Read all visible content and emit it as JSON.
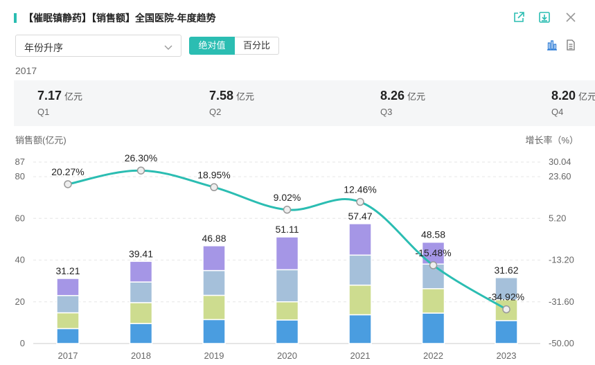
{
  "header": {
    "title": "【催眠镇静药】【销售额】全国医院-年度趋势",
    "icons": [
      "export-icon",
      "download-icon",
      "close-icon"
    ]
  },
  "toolbar": {
    "sort_value": "年份升序",
    "abs_label": "绝对值",
    "pct_label": "百分比",
    "view_icons": [
      "bar-chart-icon",
      "table-icon"
    ]
  },
  "summary": {
    "year": "2017",
    "unit": "亿元",
    "quarters": [
      {
        "name": "Q1",
        "value": "7.17"
      },
      {
        "name": "Q2",
        "value": "7.58"
      },
      {
        "name": "Q3",
        "value": "8.26"
      },
      {
        "name": "Q4",
        "value": "8.20"
      }
    ]
  },
  "colors": {
    "accent": "#2bbdb2",
    "q1": "#4a9de0",
    "q2": "#cddc8f",
    "q3": "#a5c0da",
    "q4": "#a596e6",
    "line": "#2bbdb2"
  },
  "chart_data": {
    "type": "bar",
    "stacked": true,
    "categories": [
      "2017",
      "2018",
      "2019",
      "2020",
      "2021",
      "2022",
      "2023"
    ],
    "totals": [
      31.21,
      39.41,
      46.88,
      51.11,
      57.47,
      48.58,
      31.62
    ],
    "series": [
      {
        "values": [
          7.17,
          9.6,
          11.5,
          11.3,
          13.8,
          14.6,
          11.0
        ]
      },
      {
        "values": [
          7.58,
          10.0,
          11.6,
          8.7,
          14.2,
          11.7,
          10.0
        ]
      },
      {
        "values": [
          8.26,
          9.9,
          11.9,
          15.4,
          14.4,
          11.8,
          10.62
        ]
      },
      {
        "values": [
          8.2,
          9.91,
          11.88,
          15.71,
          15.07,
          10.48,
          0
        ]
      }
    ],
    "growth": {
      "values": [
        20.27,
        26.3,
        18.95,
        9.02,
        12.46,
        -15.48,
        -34.92
      ],
      "labels": [
        "20.27%",
        "26.30%",
        "18.95%",
        "9.02%",
        "12.46%",
        "-15.48%",
        "-34.92%"
      ]
    },
    "ylabel": "销售额(亿元)",
    "y2label": "增长率（%）",
    "ylim": [
      0,
      87
    ],
    "yticks": [
      0,
      20,
      40,
      60,
      80,
      87
    ],
    "y2lim": [
      -50.0,
      30.04
    ],
    "y2ticks": [
      "30.04",
      "23.60",
      "5.20",
      "-13.20",
      "-31.60",
      "-50.00"
    ],
    "grid": true
  }
}
